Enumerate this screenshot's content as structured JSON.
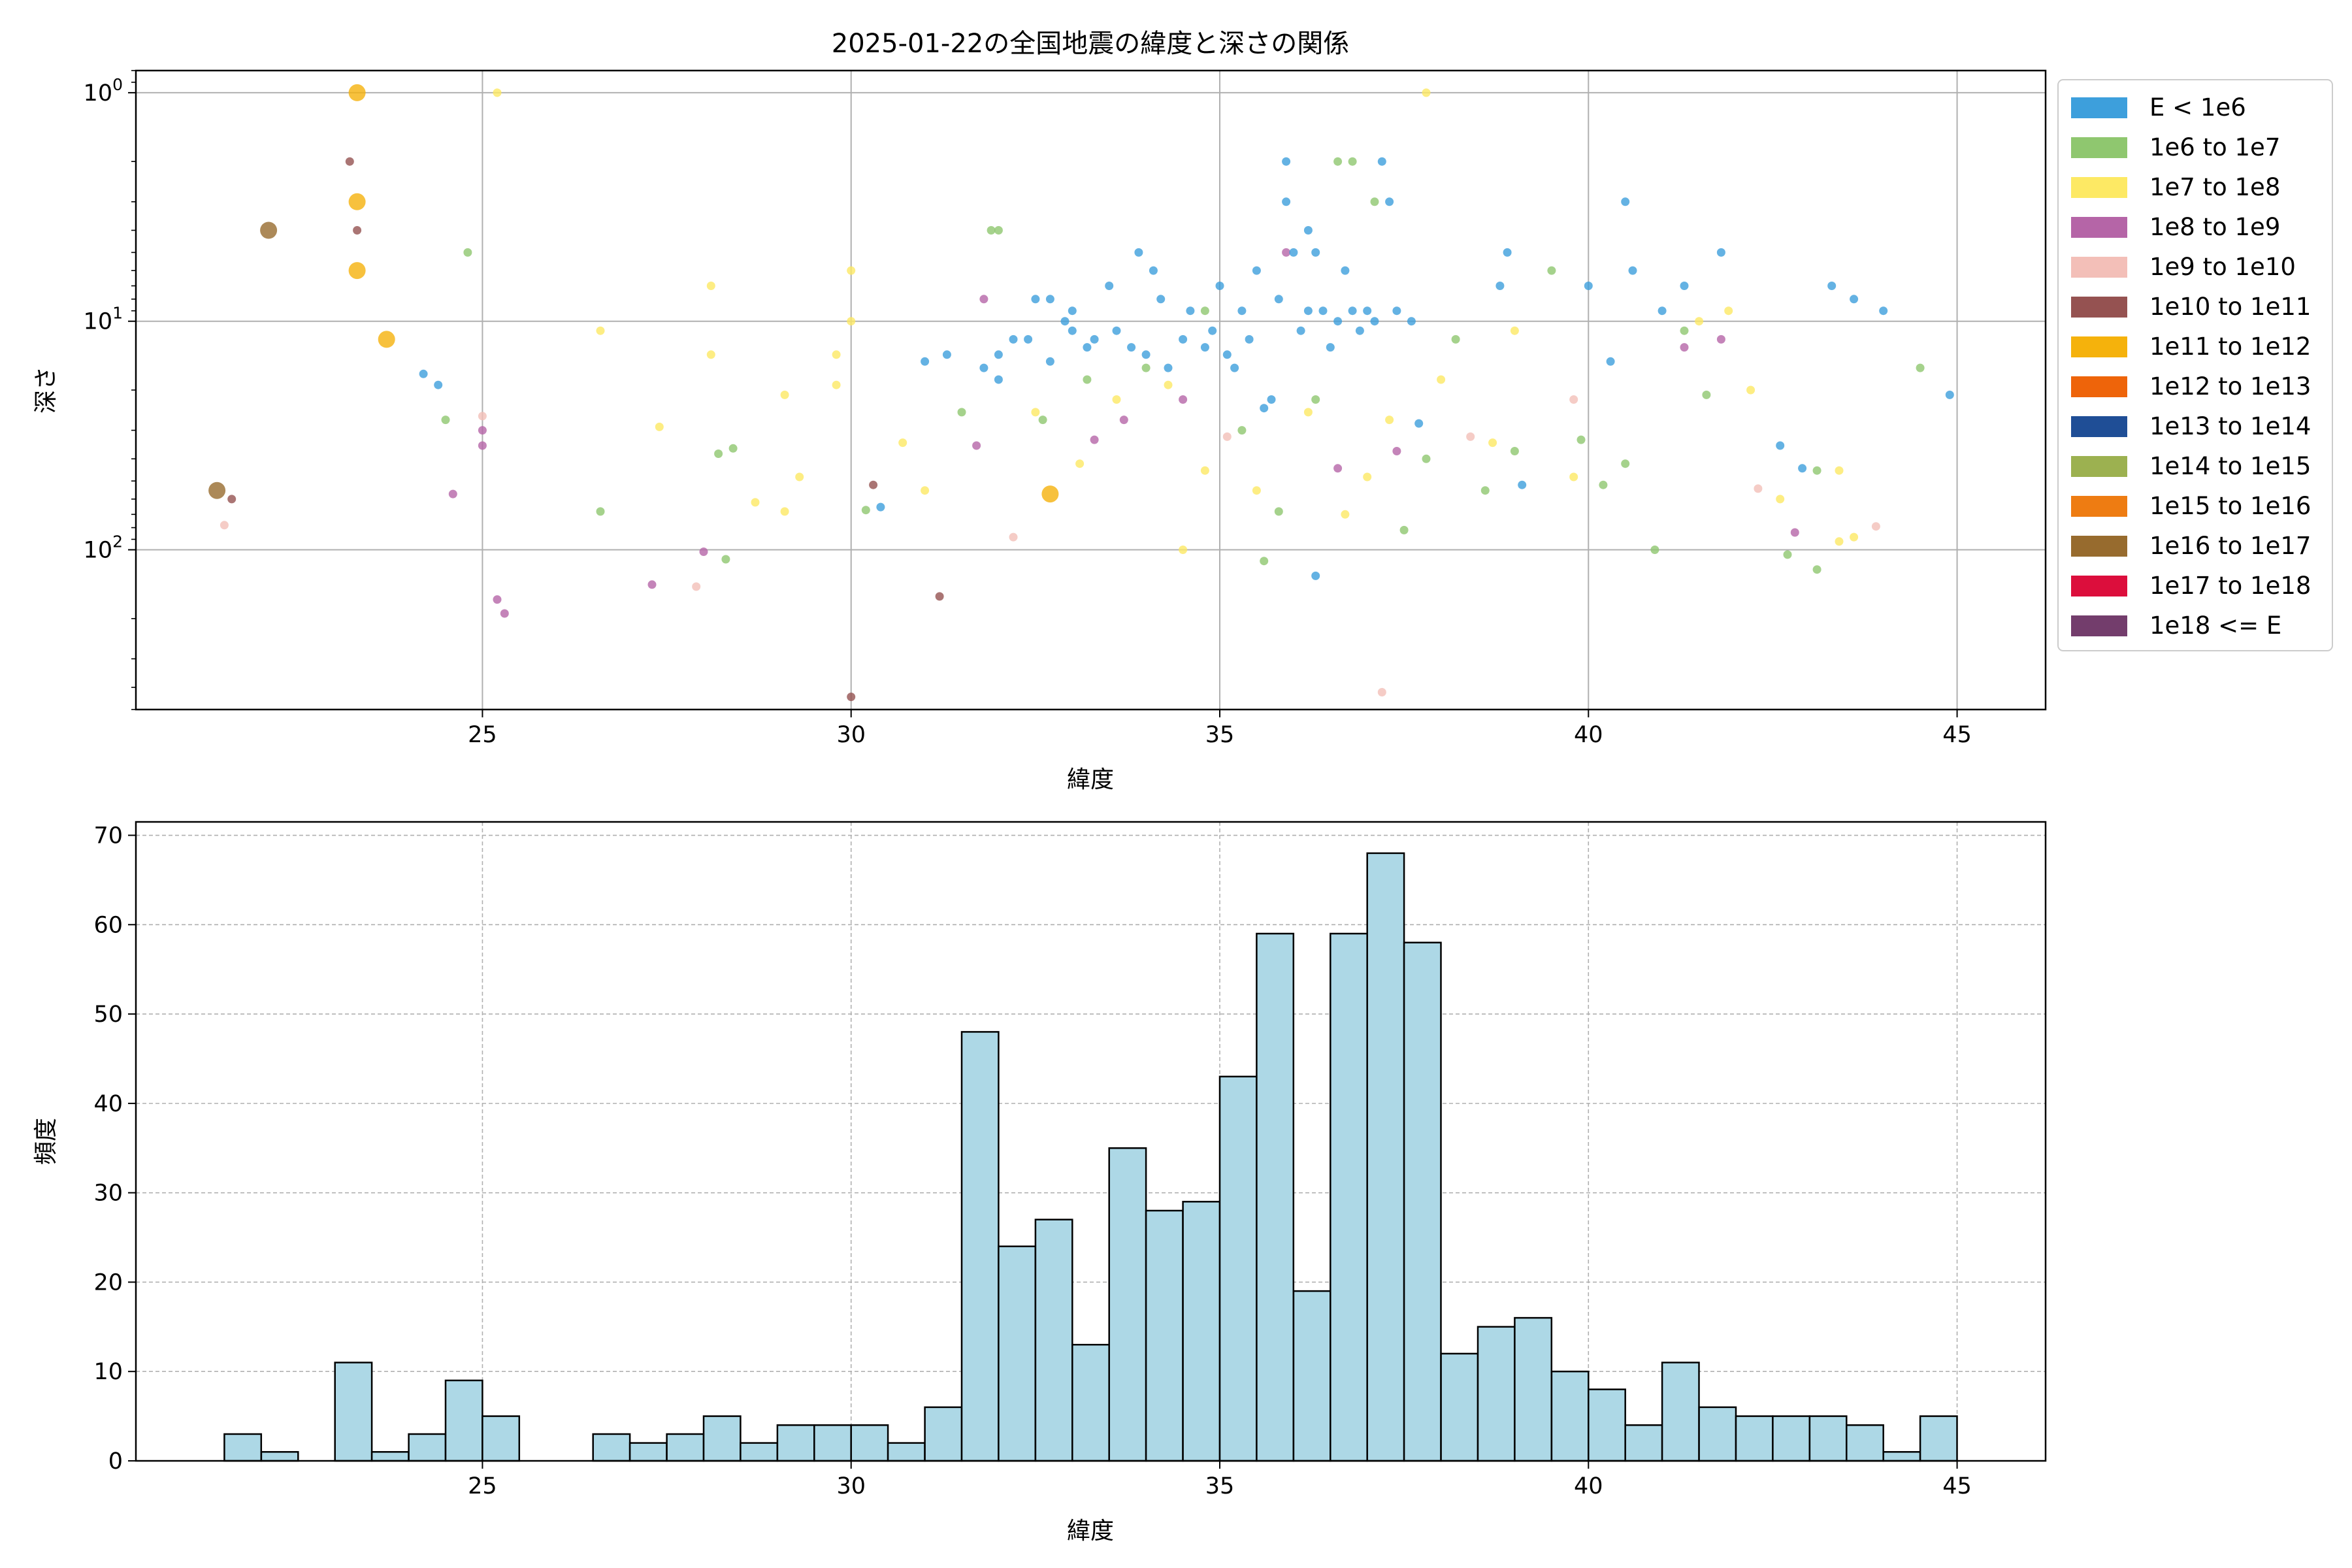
{
  "chart_data": [
    {
      "type": "scatter",
      "title": "2025-01-22の全国地震の緯度と深さの関係",
      "xlabel": "緯度",
      "ylabel": "深さ",
      "xlim": [
        20.3,
        46.2
      ],
      "ylim": [
        500,
        0.8
      ],
      "y_scale": "log",
      "y_inverted": true,
      "grid": true,
      "x_ticks": [
        "25",
        "30",
        "35",
        "40",
        "45"
      ],
      "y_ticks": [
        "10^0",
        "10^1",
        "10^2"
      ],
      "legend_position": "outside-right",
      "legend": [
        {
          "label": "E < 1e6",
          "color": "#3d9fdc"
        },
        {
          "label": "1e6 to 1e7",
          "color": "#8fc76f"
        },
        {
          "label": "1e7 to 1e8",
          "color": "#fde964"
        },
        {
          "label": "1e8 to 1e9",
          "color": "#b565a7"
        },
        {
          "label": "1e9 to 1e10",
          "color": "#f3bfb8"
        },
        {
          "label": "1e10 to 1e11",
          "color": "#955251"
        },
        {
          "label": "1e11 to 1e12",
          "color": "#f5b20c"
        },
        {
          "label": "1e12 to 1e13",
          "color": "#ee640a"
        },
        {
          "label": "1e13 to 1e14",
          "color": "#1f4e96"
        },
        {
          "label": "1e14 to 1e15",
          "color": "#9cb150"
        },
        {
          "label": "1e15 to 1e16",
          "color": "#ee7c12"
        },
        {
          "label": "1e16 to 1e17",
          "color": "#976b2e"
        },
        {
          "label": "1e17 to 1e18",
          "color": "#dc0e3c"
        },
        {
          "label": "1e18 <= E",
          "color": "#733d6c"
        }
      ],
      "points": [
        [
          21.4,
          55,
          11,
          "large"
        ],
        [
          22.1,
          4,
          11,
          "large"
        ],
        [
          23.7,
          12,
          6,
          "large"
        ],
        [
          23.3,
          1,
          6,
          "large"
        ],
        [
          23.3,
          3,
          6,
          "large"
        ],
        [
          23.3,
          6,
          6,
          "large"
        ],
        [
          32.7,
          57,
          6,
          "large"
        ],
        [
          23.2,
          2,
          5,
          "small"
        ],
        [
          23.3,
          4,
          5,
          "small"
        ],
        [
          21.6,
          60,
          5,
          "small"
        ],
        [
          30.3,
          52,
          5,
          "small"
        ],
        [
          31.2,
          160,
          5,
          "small"
        ],
        [
          30.0,
          440,
          5,
          "small"
        ],
        [
          21.5,
          78,
          4,
          "small"
        ],
        [
          25.0,
          26,
          4,
          "small"
        ],
        [
          27.9,
          145,
          4,
          "small"
        ],
        [
          32.2,
          88,
          4,
          "small"
        ],
        [
          35.1,
          32,
          4,
          "small"
        ],
        [
          38.4,
          32,
          4,
          "small"
        ],
        [
          39.8,
          22,
          4,
          "small"
        ],
        [
          42.3,
          54,
          4,
          "small"
        ],
        [
          43.9,
          79,
          4,
          "small"
        ],
        [
          37.2,
          420,
          4,
          "small"
        ],
        [
          25.0,
          30,
          3,
          "small"
        ],
        [
          25.0,
          35,
          3,
          "small"
        ],
        [
          24.6,
          57,
          3,
          "small"
        ],
        [
          25.2,
          165,
          3,
          "small"
        ],
        [
          25.3,
          190,
          3,
          "small"
        ],
        [
          27.3,
          142,
          3,
          "small"
        ],
        [
          28.0,
          102,
          3,
          "small"
        ],
        [
          31.7,
          35,
          3,
          "small"
        ],
        [
          31.8,
          8,
          3,
          "small"
        ],
        [
          33.3,
          33,
          3,
          "small"
        ],
        [
          33.7,
          27,
          3,
          "small"
        ],
        [
          34.5,
          22,
          3,
          "small"
        ],
        [
          35.9,
          5,
          3,
          "small"
        ],
        [
          36.6,
          44,
          3,
          "small"
        ],
        [
          37.4,
          37,
          3,
          "small"
        ],
        [
          41.3,
          13,
          3,
          "small"
        ],
        [
          41.8,
          12,
          3,
          "small"
        ],
        [
          42.8,
          84,
          3,
          "small"
        ],
        [
          25.2,
          1,
          2,
          "small"
        ],
        [
          26.6,
          11,
          2,
          "small"
        ],
        [
          27.4,
          29,
          2,
          "small"
        ],
        [
          28.1,
          7,
          2,
          "small"
        ],
        [
          28.1,
          14,
          2,
          "small"
        ],
        [
          28.7,
          62,
          2,
          "small"
        ],
        [
          29.1,
          21,
          2,
          "small"
        ],
        [
          29.1,
          68,
          2,
          "small"
        ],
        [
          29.3,
          48,
          2,
          "small"
        ],
        [
          29.8,
          14,
          2,
          "small"
        ],
        [
          29.8,
          19,
          2,
          "small"
        ],
        [
          30.0,
          6,
          2,
          "small"
        ],
        [
          30.0,
          10,
          2,
          "small"
        ],
        [
          30.7,
          34,
          2,
          "small"
        ],
        [
          31.0,
          55,
          2,
          "small"
        ],
        [
          32.5,
          25,
          2,
          "small"
        ],
        [
          33.1,
          42,
          2,
          "small"
        ],
        [
          33.6,
          22,
          2,
          "small"
        ],
        [
          34.3,
          19,
          2,
          "small"
        ],
        [
          34.5,
          100,
          2,
          "small"
        ],
        [
          34.8,
          45,
          2,
          "small"
        ],
        [
          35.5,
          55,
          2,
          "small"
        ],
        [
          36.2,
          25,
          2,
          "small"
        ],
        [
          36.7,
          70,
          2,
          "small"
        ],
        [
          37.0,
          48,
          2,
          "small"
        ],
        [
          37.3,
          27,
          2,
          "small"
        ],
        [
          37.8,
          1,
          2,
          "small"
        ],
        [
          38.0,
          18,
          2,
          "small"
        ],
        [
          38.7,
          34,
          2,
          "small"
        ],
        [
          39.0,
          11,
          2,
          "small"
        ],
        [
          39.8,
          48,
          2,
          "small"
        ],
        [
          41.5,
          10,
          2,
          "small"
        ],
        [
          41.9,
          9,
          2,
          "small"
        ],
        [
          42.2,
          20,
          2,
          "small"
        ],
        [
          42.6,
          60,
          2,
          "small"
        ],
        [
          43.4,
          45,
          2,
          "small"
        ],
        [
          43.6,
          88,
          2,
          "small"
        ],
        [
          43.4,
          92,
          2,
          "small"
        ],
        [
          24.5,
          27,
          1,
          "small"
        ],
        [
          24.8,
          5,
          1,
          "small"
        ],
        [
          26.6,
          68,
          1,
          "small"
        ],
        [
          28.2,
          38,
          1,
          "small"
        ],
        [
          28.4,
          36,
          1,
          "small"
        ],
        [
          28.3,
          110,
          1,
          "small"
        ],
        [
          30.2,
          67,
          1,
          "small"
        ],
        [
          31.5,
          25,
          1,
          "small"
        ],
        [
          31.9,
          4,
          1,
          "small"
        ],
        [
          32.0,
          4,
          1,
          "small"
        ],
        [
          32.6,
          27,
          1,
          "small"
        ],
        [
          33.2,
          18,
          1,
          "small"
        ],
        [
          34.0,
          16,
          1,
          "small"
        ],
        [
          34.8,
          9,
          1,
          "small"
        ],
        [
          35.3,
          30,
          1,
          "small"
        ],
        [
          35.6,
          112,
          1,
          "small"
        ],
        [
          35.8,
          68,
          1,
          "small"
        ],
        [
          36.3,
          22,
          1,
          "small"
        ],
        [
          36.6,
          2,
          1,
          "small"
        ],
        [
          36.8,
          2,
          1,
          "small"
        ],
        [
          37.1,
          3,
          1,
          "small"
        ],
        [
          37.5,
          82,
          1,
          "small"
        ],
        [
          37.8,
          40,
          1,
          "small"
        ],
        [
          38.2,
          12,
          1,
          "small"
        ],
        [
          38.6,
          55,
          1,
          "small"
        ],
        [
          39.0,
          37,
          1,
          "small"
        ],
        [
          39.5,
          6,
          1,
          "small"
        ],
        [
          39.9,
          33,
          1,
          "small"
        ],
        [
          40.2,
          52,
          1,
          "small"
        ],
        [
          40.5,
          42,
          1,
          "small"
        ],
        [
          40.9,
          100,
          1,
          "small"
        ],
        [
          41.3,
          11,
          1,
          "small"
        ],
        [
          41.6,
          21,
          1,
          "small"
        ],
        [
          42.7,
          105,
          1,
          "small"
        ],
        [
          43.1,
          45,
          1,
          "small"
        ],
        [
          43.1,
          122,
          1,
          "small"
        ],
        [
          44.5,
          16,
          1,
          "small"
        ],
        [
          24.2,
          17,
          0,
          "small"
        ],
        [
          24.4,
          19,
          0,
          "small"
        ],
        [
          30.4,
          65,
          0,
          "small"
        ],
        [
          31.0,
          15,
          0,
          "small"
        ],
        [
          31.3,
          14,
          0,
          "small"
        ],
        [
          31.8,
          16,
          0,
          "small"
        ],
        [
          32.0,
          14,
          0,
          "small"
        ],
        [
          32.0,
          18,
          0,
          "small"
        ],
        [
          32.2,
          12,
          0,
          "small"
        ],
        [
          32.4,
          12,
          0,
          "small"
        ],
        [
          32.5,
          8,
          0,
          "small"
        ],
        [
          32.7,
          15,
          0,
          "small"
        ],
        [
          32.7,
          8,
          0,
          "small"
        ],
        [
          32.9,
          10,
          0,
          "small"
        ],
        [
          33.0,
          9,
          0,
          "small"
        ],
        [
          33.0,
          11,
          0,
          "small"
        ],
        [
          33.2,
          13,
          0,
          "small"
        ],
        [
          33.3,
          12,
          0,
          "small"
        ],
        [
          33.5,
          7,
          0,
          "small"
        ],
        [
          33.6,
          11,
          0,
          "small"
        ],
        [
          33.8,
          13,
          0,
          "small"
        ],
        [
          33.9,
          5,
          0,
          "small"
        ],
        [
          34.0,
          14,
          0,
          "small"
        ],
        [
          34.1,
          6,
          0,
          "small"
        ],
        [
          34.2,
          8,
          0,
          "small"
        ],
        [
          34.3,
          16,
          0,
          "small"
        ],
        [
          34.5,
          12,
          0,
          "small"
        ],
        [
          34.6,
          9,
          0,
          "small"
        ],
        [
          34.8,
          13,
          0,
          "small"
        ],
        [
          34.9,
          11,
          0,
          "small"
        ],
        [
          35.0,
          7,
          0,
          "small"
        ],
        [
          35.1,
          14,
          0,
          "small"
        ],
        [
          35.2,
          16,
          0,
          "small"
        ],
        [
          35.3,
          9,
          0,
          "small"
        ],
        [
          35.4,
          12,
          0,
          "small"
        ],
        [
          35.5,
          6,
          0,
          "small"
        ],
        [
          35.6,
          24,
          0,
          "small"
        ],
        [
          35.7,
          22,
          0,
          "small"
        ],
        [
          35.8,
          8,
          0,
          "small"
        ],
        [
          35.9,
          2,
          0,
          "small"
        ],
        [
          35.9,
          3,
          0,
          "small"
        ],
        [
          36.0,
          5,
          0,
          "small"
        ],
        [
          36.1,
          11,
          0,
          "small"
        ],
        [
          36.2,
          9,
          0,
          "small"
        ],
        [
          36.3,
          5,
          0,
          "small"
        ],
        [
          36.4,
          9,
          0,
          "small"
        ],
        [
          36.5,
          13,
          0,
          "small"
        ],
        [
          36.6,
          10,
          0,
          "small"
        ],
        [
          36.7,
          6,
          0,
          "small"
        ],
        [
          36.8,
          9,
          0,
          "small"
        ],
        [
          36.9,
          11,
          0,
          "small"
        ],
        [
          37.0,
          9,
          0,
          "small"
        ],
        [
          37.1,
          10,
          0,
          "small"
        ],
        [
          37.2,
          2,
          0,
          "small"
        ],
        [
          37.3,
          3,
          0,
          "small"
        ],
        [
          37.4,
          9,
          0,
          "small"
        ],
        [
          37.6,
          10,
          0,
          "small"
        ],
        [
          37.7,
          28,
          0,
          "small"
        ],
        [
          38.8,
          7,
          0,
          "small"
        ],
        [
          38.9,
          5,
          0,
          "small"
        ],
        [
          39.1,
          52,
          0,
          "small"
        ],
        [
          40.0,
          7,
          0,
          "small"
        ],
        [
          40.3,
          15,
          0,
          "small"
        ],
        [
          40.5,
          3,
          0,
          "small"
        ],
        [
          40.6,
          6,
          0,
          "small"
        ],
        [
          41.0,
          9,
          0,
          "small"
        ],
        [
          41.3,
          7,
          0,
          "small"
        ],
        [
          41.8,
          5,
          0,
          "small"
        ],
        [
          42.6,
          35,
          0,
          "small"
        ],
        [
          42.9,
          44,
          0,
          "small"
        ],
        [
          43.3,
          7,
          0,
          "small"
        ],
        [
          43.6,
          8,
          0,
          "small"
        ],
        [
          44.0,
          9,
          0,
          "small"
        ],
        [
          44.9,
          21,
          0,
          "small"
        ],
        [
          36.3,
          130,
          0,
          "small"
        ],
        [
          36.2,
          4,
          0,
          "small"
        ]
      ]
    },
    {
      "type": "bar",
      "title": "",
      "xlabel": "緯度",
      "ylabel": "頻度",
      "xlim": [
        20.3,
        46.2
      ],
      "ylim": [
        0,
        71.5
      ],
      "grid": true,
      "x_ticks": [
        "25",
        "30",
        "35",
        "40",
        "45"
      ],
      "y_ticks": [
        "0",
        "10",
        "20",
        "30",
        "40",
        "50",
        "60",
        "70"
      ],
      "bin_start": 21.5,
      "bin_width": 0.5,
      "values": [
        3,
        1,
        0,
        11,
        1,
        3,
        9,
        5,
        0,
        0,
        3,
        2,
        3,
        5,
        2,
        4,
        4,
        4,
        2,
        6,
        48,
        24,
        27,
        13,
        35,
        28,
        29,
        43,
        59,
        19,
        59,
        68,
        58,
        12,
        15,
        16,
        10,
        8,
        4,
        11,
        6,
        5,
        5,
        5,
        4,
        1,
        5
      ],
      "bar_color": "#add8e6"
    }
  ]
}
